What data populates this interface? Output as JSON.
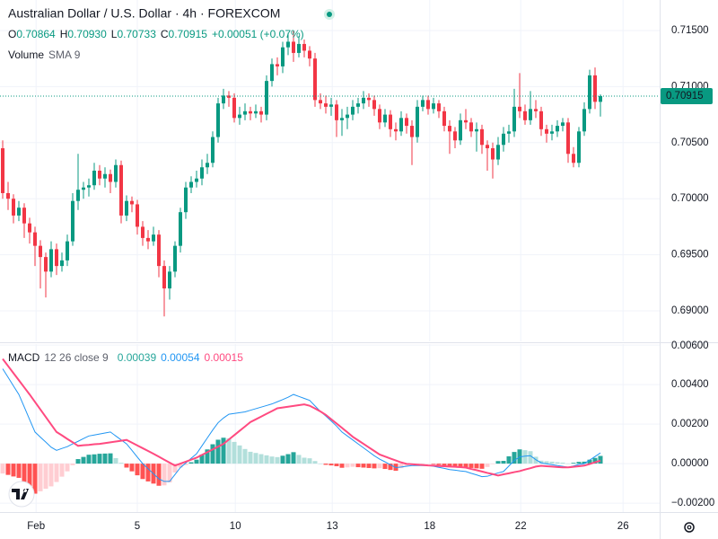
{
  "chart_data": [
    {
      "type": "candlestick",
      "title": "Australian Dollar / U.S. Dollar · 4h · FOREXCOM",
      "legend": {
        "ohlc": [
          {
            "label": "O",
            "value": "0.70864"
          },
          {
            "label": "H",
            "value": "0.70930"
          },
          {
            "label": "L",
            "value": "0.70733"
          },
          {
            "label": "C",
            "value": "0.70915"
          }
        ],
        "change": "+0.00051 (+0.07%)",
        "volume": "Volume",
        "volume_sma": "SMA 9"
      },
      "up_color": "#089981",
      "down_color": "#f23645",
      "ohlc": [
        [
          0.7045,
          0.7052,
          0.7,
          0.7005
        ],
        [
          0.7005,
          0.7015,
          0.699,
          0.7
        ],
        [
          0.7,
          0.7004,
          0.6978,
          0.6985
        ],
        [
          0.6985,
          0.6998,
          0.698,
          0.6992
        ],
        [
          0.6992,
          0.6996,
          0.6965,
          0.6978
        ],
        [
          0.6978,
          0.6983,
          0.696,
          0.697
        ],
        [
          0.697,
          0.6975,
          0.694,
          0.6958
        ],
        [
          0.6958,
          0.6963,
          0.692,
          0.6948
        ],
        [
          0.6948,
          0.6952,
          0.6912,
          0.6935
        ],
        [
          0.6935,
          0.6962,
          0.693,
          0.6955
        ],
        [
          0.6955,
          0.696,
          0.6932,
          0.694
        ],
        [
          0.694,
          0.6952,
          0.6935,
          0.6945
        ],
        [
          0.6945,
          0.6968,
          0.694,
          0.6962
        ],
        [
          0.6962,
          0.7005,
          0.6958,
          0.6998
        ],
        [
          0.6998,
          0.704,
          0.699,
          0.7008
        ],
        [
          0.7008,
          0.7015,
          0.7,
          0.701
        ],
        [
          0.701,
          0.7018,
          0.7002,
          0.7012
        ],
        [
          0.7012,
          0.7032,
          0.7008,
          0.7025
        ],
        [
          0.7025,
          0.703,
          0.7012,
          0.7018
        ],
        [
          0.7018,
          0.7028,
          0.701,
          0.7022
        ],
        [
          0.7022,
          0.7026,
          0.7005,
          0.7015
        ],
        [
          0.7015,
          0.7035,
          0.701,
          0.703
        ],
        [
          0.703,
          0.7034,
          0.6978,
          0.6985
        ],
        [
          0.6985,
          0.7003,
          0.698,
          0.6998
        ],
        [
          0.6998,
          0.7002,
          0.6988,
          0.6995
        ],
        [
          0.6995,
          0.6999,
          0.6968,
          0.6975
        ],
        [
          0.6975,
          0.698,
          0.6958,
          0.6965
        ],
        [
          0.6965,
          0.6972,
          0.6955,
          0.6962
        ],
        [
          0.6962,
          0.6975,
          0.6958,
          0.6968
        ],
        [
          0.6968,
          0.6972,
          0.693,
          0.694
        ],
        [
          0.694,
          0.6945,
          0.6895,
          0.692
        ],
        [
          0.692,
          0.694,
          0.691,
          0.6935
        ],
        [
          0.6935,
          0.6962,
          0.693,
          0.6958
        ],
        [
          0.6958,
          0.6992,
          0.6952,
          0.6988
        ],
        [
          0.6988,
          0.7015,
          0.6982,
          0.701
        ],
        [
          0.701,
          0.702,
          0.7005,
          0.7015
        ],
        [
          0.7015,
          0.7025,
          0.701,
          0.7018
        ],
        [
          0.7018,
          0.7035,
          0.7012,
          0.7028
        ],
        [
          0.7028,
          0.704,
          0.7022,
          0.7032
        ],
        [
          0.7032,
          0.706,
          0.7028,
          0.7055
        ],
        [
          0.7055,
          0.709,
          0.705,
          0.7085
        ],
        [
          0.7085,
          0.7098,
          0.708,
          0.7092
        ],
        [
          0.7092,
          0.7096,
          0.7082,
          0.709
        ],
        [
          0.709,
          0.7094,
          0.7068,
          0.7072
        ],
        [
          0.7072,
          0.7082,
          0.7066,
          0.7075
        ],
        [
          0.7075,
          0.7085,
          0.707,
          0.7078
        ],
        [
          0.7078,
          0.7082,
          0.707,
          0.7076
        ],
        [
          0.7076,
          0.7084,
          0.7072,
          0.7078
        ],
        [
          0.7078,
          0.7082,
          0.7068,
          0.7075
        ],
        [
          0.7075,
          0.711,
          0.707,
          0.7105
        ],
        [
          0.7105,
          0.7125,
          0.71,
          0.712
        ],
        [
          0.712,
          0.7126,
          0.711,
          0.7118
        ],
        [
          0.7118,
          0.714,
          0.7112,
          0.7135
        ],
        [
          0.7135,
          0.7148,
          0.7128,
          0.714
        ],
        [
          0.714,
          0.715,
          0.7122,
          0.713
        ],
        [
          0.713,
          0.7145,
          0.7126,
          0.7138
        ],
        [
          0.7138,
          0.7142,
          0.7126,
          0.7132
        ],
        [
          0.7132,
          0.7136,
          0.7118,
          0.7125
        ],
        [
          0.7125,
          0.713,
          0.7082,
          0.7088
        ],
        [
          0.7088,
          0.7094,
          0.708,
          0.7085
        ],
        [
          0.7085,
          0.7092,
          0.7076,
          0.7082
        ],
        [
          0.7082,
          0.709,
          0.7074,
          0.7084
        ],
        [
          0.7084,
          0.7088,
          0.7055,
          0.707
        ],
        [
          0.707,
          0.708,
          0.7056,
          0.7072
        ],
        [
          0.7072,
          0.7082,
          0.7062,
          0.7075
        ],
        [
          0.7075,
          0.7088,
          0.707,
          0.7082
        ],
        [
          0.7082,
          0.709,
          0.7076,
          0.7085
        ],
        [
          0.7085,
          0.7096,
          0.708,
          0.709
        ],
        [
          0.709,
          0.7094,
          0.7082,
          0.7088
        ],
        [
          0.7088,
          0.7092,
          0.7074,
          0.708
        ],
        [
          0.708,
          0.7084,
          0.7062,
          0.7068
        ],
        [
          0.7068,
          0.708,
          0.7064,
          0.7075
        ],
        [
          0.7075,
          0.7079,
          0.7055,
          0.7062
        ],
        [
          0.7062,
          0.7068,
          0.7052,
          0.706
        ],
        [
          0.706,
          0.7078,
          0.7056,
          0.7072
        ],
        [
          0.7072,
          0.7076,
          0.7058,
          0.7065
        ],
        [
          0.7065,
          0.707,
          0.703,
          0.7055
        ],
        [
          0.7055,
          0.7088,
          0.705,
          0.7082
        ],
        [
          0.7082,
          0.7092,
          0.7078,
          0.7088
        ],
        [
          0.7088,
          0.7092,
          0.7075,
          0.708
        ],
        [
          0.708,
          0.709,
          0.7076,
          0.7085
        ],
        [
          0.7085,
          0.7088,
          0.7072,
          0.7078
        ],
        [
          0.7078,
          0.7082,
          0.706,
          0.7065
        ],
        [
          0.7065,
          0.707,
          0.704,
          0.706
        ],
        [
          0.706,
          0.7064,
          0.7045,
          0.7052
        ],
        [
          0.7052,
          0.7076,
          0.7048,
          0.707
        ],
        [
          0.707,
          0.708,
          0.7062,
          0.7068
        ],
        [
          0.7068,
          0.7072,
          0.7055,
          0.706
        ],
        [
          0.706,
          0.7068,
          0.7042,
          0.7062
        ],
        [
          0.7062,
          0.7066,
          0.704,
          0.7048
        ],
        [
          0.7048,
          0.7052,
          0.7025,
          0.7045
        ],
        [
          0.7045,
          0.705,
          0.7018,
          0.7035
        ],
        [
          0.7035,
          0.7055,
          0.703,
          0.7048
        ],
        [
          0.7048,
          0.7064,
          0.7042,
          0.7058
        ],
        [
          0.7058,
          0.7066,
          0.705,
          0.706
        ],
        [
          0.706,
          0.7098,
          0.7055,
          0.7082
        ],
        [
          0.7082,
          0.7112,
          0.7072,
          0.7078
        ],
        [
          0.7078,
          0.7084,
          0.7066,
          0.707
        ],
        [
          0.707,
          0.7096,
          0.7066,
          0.708
        ],
        [
          0.708,
          0.7088,
          0.7072,
          0.7078
        ],
        [
          0.7078,
          0.7082,
          0.7056,
          0.7062
        ],
        [
          0.7062,
          0.7066,
          0.705,
          0.7058
        ],
        [
          0.7058,
          0.7066,
          0.7052,
          0.706
        ],
        [
          0.706,
          0.707,
          0.7055,
          0.7065
        ],
        [
          0.7065,
          0.7072,
          0.706,
          0.7068
        ],
        [
          0.7068,
          0.7072,
          0.7032,
          0.704
        ],
        [
          0.704,
          0.7046,
          0.7028,
          0.7032
        ],
        [
          0.7032,
          0.7064,
          0.7028,
          0.706
        ],
        [
          0.706,
          0.7086,
          0.7056,
          0.708
        ],
        [
          0.708,
          0.7115,
          0.7076,
          0.711
        ],
        [
          0.711,
          0.7117,
          0.708,
          0.70864
        ],
        [
          0.70864,
          0.7093,
          0.70733,
          0.70915
        ]
      ],
      "ylim": [
        0.68728,
        0.71772
      ],
      "yticks": [
        {
          "value": 0.715,
          "label": "0.71500"
        },
        {
          "value": 0.71,
          "label": "0.71000"
        },
        {
          "value": 0.705,
          "label": "0.70500"
        },
        {
          "value": 0.7,
          "label": "0.70000"
        },
        {
          "value": 0.695,
          "label": "0.69500"
        },
        {
          "value": 0.69,
          "label": "0.69000"
        }
      ],
      "xlim": [
        -0.5,
        122
      ],
      "xticks": [
        {
          "value": 6.2,
          "label": "Feb"
        },
        {
          "value": 25,
          "label": "5"
        },
        {
          "value": 43.2,
          "label": "10"
        },
        {
          "value": 61.2,
          "label": "13"
        },
        {
          "value": 79.3,
          "label": "18"
        },
        {
          "value": 96.2,
          "label": "22"
        },
        {
          "value": 115.2,
          "label": "26"
        }
      ],
      "last_price": {
        "value": 0.70915,
        "label": "0.70915"
      },
      "grid": true
    },
    {
      "type": "macd",
      "title": "MACD",
      "params": "12 26 close 9",
      "ylim": [
        -0.00245,
        0.00605
      ],
      "yticks": [
        {
          "value": 0.006,
          "label": "0.00600"
        },
        {
          "value": 0.004,
          "label": "0.00400"
        },
        {
          "value": 0.002,
          "label": "0.00200"
        },
        {
          "value": 0,
          "label": "0.00000"
        },
        {
          "value": -0.002,
          "label": "−0.00200"
        }
      ],
      "grid": true,
      "histogram": {
        "colors": [
          "#26a69a",
          "#b2dfdb",
          "#ff5252",
          "#ffcdd2"
        ],
        "legend_color": "#26a69a",
        "last_label": "0.00039",
        "values": [
          -0.0005,
          -0.00057,
          -0.00065,
          -0.00072,
          -0.00099,
          -0.00127,
          -0.00152,
          -0.0014,
          -0.00127,
          -0.00115,
          -0.00093,
          -0.00066,
          -0.00039,
          -8e-05,
          0.00023,
          0.00034,
          0.00045,
          0.00047,
          0.0005,
          0.00051,
          0.00052,
          0.00028,
          4e-05,
          -0.0002,
          -0.00039,
          -0.00059,
          -0.00078,
          -0.0009,
          -0.00101,
          -0.00112,
          -0.0011,
          -0.00095,
          -0.00045,
          -0.0002,
          -7e-05,
          7e-05,
          0.0002,
          0.00046,
          0.00072,
          0.00098,
          0.00121,
          0.00131,
          0.00128,
          0.0011,
          0.00092,
          0.00074,
          0.0006,
          0.00054,
          0.00048,
          0.00042,
          0.00036,
          0.00033,
          0.0004,
          0.00048,
          0.00058,
          0.00044,
          0.0003,
          0.00027,
          0.00013,
          0,
          -6e-05,
          -9e-05,
          -0.00013,
          -0.00021,
          -0.00019,
          -0.00016,
          -0.00018,
          -0.0002,
          -0.00022,
          -0.00024,
          -0.00023,
          -0.00027,
          -0.00032,
          -0.00036,
          -0.00023,
          -0.00012,
          -7e-05,
          -5e-05,
          -3e-05,
          -1e-05,
          -3e-05,
          -7e-05,
          -0.00011,
          -0.00015,
          -0.00017,
          -0.00019,
          -0.0002,
          -0.00022,
          -0.00024,
          -0.00026,
          -0.00017,
          -2e-05,
          0.00013,
          0.00014,
          0.00037,
          0.00059,
          0.00072,
          0.00068,
          0.00063,
          0.00035,
          0.00015,
          0.00012,
          0.0001,
          7e-05,
          5e-05,
          1e-05,
          4e-05,
          9e-05,
          0.0001,
          0.0002,
          0.00029,
          0.00039
        ]
      },
      "macd": {
        "color": "#2196f3",
        "last_label": "0.00054",
        "values": [
          0.0048,
          0.00437,
          0.00393,
          0.0035,
          0.00287,
          0.00223,
          0.0016,
          0.00134,
          0.00109,
          0.00083,
          0.00067,
          0.00077,
          0.00086,
          0.001,
          0.00113,
          0.00127,
          0.0014,
          0.00145,
          0.0015,
          0.00155,
          0.0016,
          0.0014,
          0.0012,
          0.001,
          0.00067,
          0.00033,
          0,
          -0.00026,
          -0.00051,
          -0.00077,
          -0.0009,
          -0.0009,
          -0.00055,
          -0.0002,
          3e-05,
          0.00027,
          0.0005,
          0.0009,
          0.0013,
          0.0017,
          0.00207,
          0.00231,
          0.0025,
          0.00254,
          0.00258,
          0.00262,
          0.0027,
          0.00278,
          0.00286,
          0.00294,
          0.00302,
          0.00313,
          0.00324,
          0.00336,
          0.0035,
          0.0034,
          0.0033,
          0.0032,
          0.00292,
          0.00264,
          0.00241,
          0.00216,
          0.0019,
          0.0016,
          0.0014,
          0.0012,
          0.001,
          0.0008,
          0.0006,
          0.0004,
          0.00023,
          9e-05,
          -6e-05,
          -0.0002,
          -0.00017,
          -0.00013,
          -0.0001,
          -0.0001,
          -0.0001,
          -0.0001,
          -0.00013,
          -0.00019,
          -0.00024,
          -0.0003,
          -0.00033,
          -0.00037,
          -0.0004,
          -0.00049,
          -0.00057,
          -0.00066,
          -0.00064,
          -0.00055,
          -0.00047,
          -0.0004,
          -0.00012,
          0.00016,
          0.00034,
          0.00038,
          0.0004,
          0.0002,
          4e-05,
          -1e-05,
          -5e-05,
          -0.0001,
          -0.00014,
          -0.00018,
          -0.00012,
          -4e-05,
          0,
          0.00018,
          0.00036,
          0.00054
        ]
      },
      "signal": {
        "color": "#ff4a80",
        "last_label": "0.00015",
        "values": [
          0.0053,
          0.00494,
          0.00458,
          0.00422,
          0.00386,
          0.0035,
          0.00312,
          0.00274,
          0.00236,
          0.00198,
          0.0016,
          0.00143,
          0.00125,
          0.00108,
          0.0009,
          0.00093,
          0.00095,
          0.00098,
          0.001,
          0.00104,
          0.00108,
          0.00112,
          0.00116,
          0.0012,
          0.00106,
          0.00092,
          0.00078,
          0.00064,
          0.0005,
          0.00035,
          0.0002,
          5e-05,
          -0.0001,
          0,
          0.0001,
          0.0002,
          0.0003,
          0.00044,
          0.00058,
          0.00072,
          0.00086,
          0.001,
          0.00122,
          0.00144,
          0.00166,
          0.00188,
          0.0021,
          0.00224,
          0.00238,
          0.00252,
          0.00266,
          0.0028,
          0.00284,
          0.00288,
          0.00292,
          0.00296,
          0.003,
          0.00293,
          0.00279,
          0.00264,
          0.00247,
          0.00225,
          0.00203,
          0.00181,
          0.00159,
          0.00136,
          0.00118,
          0.001,
          0.00082,
          0.00064,
          0.00046,
          0.00036,
          0.00026,
          0.00016,
          6e-05,
          -1e-05,
          -3e-05,
          -5e-05,
          -7e-05,
          -9e-05,
          -0.0001,
          -0.00012,
          -0.00013,
          -0.00015,
          -0.00016,
          -0.00018,
          -0.0002,
          -0.00027,
          -0.00033,
          -0.0004,
          -0.00047,
          -0.00053,
          -0.0006,
          -0.00054,
          -0.00049,
          -0.00043,
          -0.00038,
          -0.0003,
          -0.00023,
          -0.00015,
          -0.00011,
          -0.00013,
          -0.00015,
          -0.00017,
          -0.00019,
          -0.00019,
          -0.00016,
          -0.00013,
          -0.0001,
          -2e-05,
          7e-05,
          0.00015
        ]
      }
    }
  ]
}
